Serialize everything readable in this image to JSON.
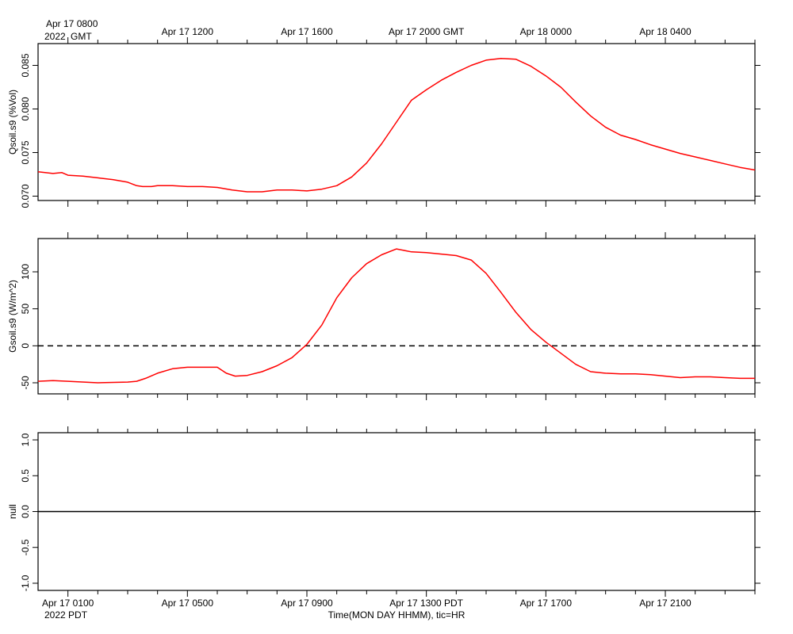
{
  "chart_data": {
    "type": "line",
    "top_axis": {
      "timezone_label": "GMT",
      "year_label": "2022",
      "first_tick_label": "Apr 17 0800",
      "tick_labels": [
        "Apr 17 1200",
        "Apr 17 1600",
        "Apr 17 2000 GMT",
        "Apr 18 0000",
        "Apr 18 0400"
      ]
    },
    "bottom_axis": {
      "year_label": "2022 PDT",
      "tick_labels": [
        "Apr 17 0100",
        "Apr 17 0500",
        "Apr 17 0900",
        "Apr 17 1300 PDT",
        "Apr 17 1700",
        "Apr 17 2100"
      ],
      "xlabel": "Time(MON DAY HHMM), tic=HR"
    },
    "x_units": "hours since Apr 17 0000 PDT",
    "xlim": [
      0.0,
      24.0
    ],
    "panels": [
      {
        "ylabel": "Qsoil.s9 (%Vol)",
        "ylim": [
          0.0695,
          0.0875
        ],
        "yticks": [
          0.07,
          0.075,
          0.08,
          0.085
        ],
        "ytick_labels": [
          "0.070",
          "0.075",
          "0.080",
          "0.085"
        ],
        "series": [
          {
            "color": "#ff0000",
            "x": [
              0.0,
              0.5,
              0.8,
              1.0,
              1.5,
              2.0,
              2.5,
              3.0,
              3.3,
              3.5,
              3.8,
              4.0,
              4.5,
              5.0,
              5.5,
              6.0,
              6.5,
              7.0,
              7.5,
              8.0,
              8.5,
              9.0,
              9.5,
              10.0,
              10.5,
              11.0,
              11.5,
              12.0,
              12.5,
              13.0,
              13.5,
              14.0,
              14.5,
              15.0,
              15.5,
              16.0,
              16.5,
              17.0,
              17.5,
              18.0,
              18.5,
              19.0,
              19.5,
              20.0,
              20.5,
              21.0,
              21.5,
              22.0,
              22.5,
              23.0,
              23.5,
              24.0
            ],
            "values": [
              0.0728,
              0.0726,
              0.0727,
              0.0724,
              0.0723,
              0.0721,
              0.0719,
              0.0716,
              0.0712,
              0.0711,
              0.0711,
              0.0712,
              0.0712,
              0.0711,
              0.0711,
              0.071,
              0.0707,
              0.0705,
              0.0705,
              0.0707,
              0.0707,
              0.0706,
              0.0708,
              0.0712,
              0.0722,
              0.0738,
              0.076,
              0.0785,
              0.081,
              0.0822,
              0.0833,
              0.0842,
              0.085,
              0.0856,
              0.0858,
              0.0857,
              0.0849,
              0.0838,
              0.0825,
              0.0808,
              0.0792,
              0.0779,
              0.077,
              0.0765,
              0.0759,
              0.0754,
              0.0749,
              0.0745,
              0.0741,
              0.0737,
              0.0733,
              0.073
            ]
          }
        ]
      },
      {
        "ylabel": "Gsoil.s9 (W/m^2)",
        "ylim": [
          -65,
          145
        ],
        "yticks": [
          -50,
          0,
          50,
          100
        ],
        "ytick_labels": [
          "-50",
          "0",
          "50",
          "100"
        ],
        "zero_line": true,
        "series": [
          {
            "color": "#ff0000",
            "x": [
              0.0,
              0.5,
              1.0,
              2.0,
              3.0,
              3.3,
              3.6,
              4.0,
              4.5,
              5.0,
              5.5,
              6.0,
              6.3,
              6.6,
              7.0,
              7.5,
              8.0,
              8.5,
              9.0,
              9.5,
              10.0,
              10.5,
              11.0,
              11.5,
              12.0,
              12.5,
              13.0,
              13.5,
              14.0,
              14.5,
              15.0,
              15.5,
              16.0,
              16.5,
              17.0,
              17.5,
              18.0,
              18.5,
              19.0,
              19.5,
              20.0,
              20.5,
              21.0,
              21.5,
              22.0,
              22.5,
              23.0,
              23.5,
              24.0
            ],
            "values": [
              -48,
              -47,
              -48,
              -50,
              -49,
              -48,
              -44,
              -37,
              -31,
              -29,
              -29,
              -29,
              -37,
              -41,
              -40,
              -35,
              -27,
              -16,
              2,
              28,
              65,
              92,
              111,
              123,
              131,
              127,
              126,
              124,
              122,
              116,
              98,
              72,
              45,
              22,
              5,
              -10,
              -25,
              -35,
              -37,
              -38,
              -38,
              -39,
              -41,
              -43,
              -42,
              -42,
              -43,
              -44,
              -44
            ]
          }
        ]
      },
      {
        "ylabel": "null",
        "ylim": [
          -1.1,
          1.1
        ],
        "yticks": [
          -1.0,
          -0.5,
          0.0,
          0.5,
          1.0
        ],
        "ytick_labels": [
          "-1.0",
          "-0.5",
          "0.0",
          "0.5",
          "1.0"
        ],
        "series": [
          {
            "color": "#000000",
            "x": [
              0.0,
              24.0
            ],
            "values": [
              0.0,
              0.0
            ]
          }
        ]
      }
    ]
  }
}
